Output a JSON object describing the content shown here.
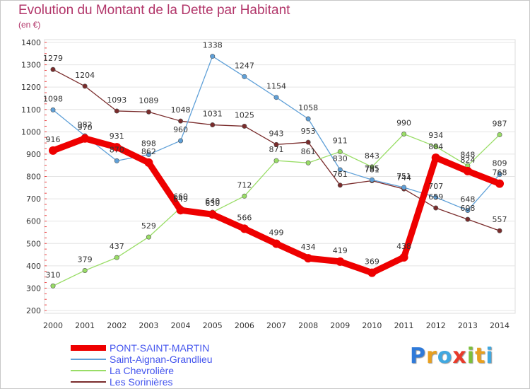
{
  "title": "Evolution du Montant de la Dette par Habitant",
  "subtitle": "(en €)",
  "logo": {
    "letters": [
      "P",
      "r",
      "o",
      "x",
      "i",
      "t",
      "i"
    ],
    "colors": [
      "#2f7ad9",
      "#e8a020",
      "#41a8e0",
      "#e83a2a",
      "#7cc03a",
      "#e8a020",
      "#41a8e0"
    ]
  },
  "chart_data": {
    "type": "line",
    "title": "Evolution du Montant de la Dette par Habitant",
    "ylabel": "(en €)",
    "xlabel": "",
    "x": [
      "2000",
      "2001",
      "2002",
      "2003",
      "2004",
      "2005",
      "2006",
      "2007",
      "2008",
      "2009",
      "2010",
      "2011",
      "2012",
      "2013",
      "2014"
    ],
    "ylim": [
      200,
      1400
    ],
    "yticks": [
      "1400",
      "1300",
      "1200",
      "1100",
      "1000",
      "900",
      "800",
      "700",
      "600",
      "500",
      "400",
      "300",
      "200"
    ],
    "grid": "horizontal",
    "legend": "bottom-left",
    "series": [
      {
        "name": "PONT-SAINT-MARTIN",
        "color": "#ee0000",
        "values": [
          916,
          970,
          931,
          862,
          649,
          630,
          566,
          499,
          434,
          419,
          369,
          438,
          884,
          824,
          768
        ],
        "labels": [
          "916",
          "970",
          "931",
          "862",
          "649",
          "630",
          "566",
          "499",
          "434",
          "419",
          "369",
          "438",
          "884",
          "824",
          "768"
        ]
      },
      {
        "name": "Saint-Aignan-Grandlieu",
        "color": "#5fa0d8",
        "values": [
          1098,
          982,
          870,
          898,
          960,
          1338,
          1247,
          1154,
          1058,
          830,
          785,
          751,
          707,
          648,
          809
        ],
        "labels": [
          "1098",
          "982",
          "870",
          "898",
          "960",
          "1338",
          "1247",
          "1154",
          "1058",
          "830",
          "785",
          "751",
          "707",
          "648",
          "809"
        ]
      },
      {
        "name": "La Chevrolière",
        "color": "#99dd66",
        "values": [
          310,
          379,
          437,
          529,
          660,
          640,
          712,
          871,
          861,
          911,
          843,
          990,
          934,
          848,
          987
        ],
        "labels": [
          "310",
          "379",
          "437",
          "529",
          "660",
          "640",
          "712",
          "871",
          "861",
          "911",
          "843",
          "990",
          "934",
          "848",
          "987"
        ]
      },
      {
        "name": "Les Sorinières",
        "color": "#7a2c2c",
        "values": [
          1279,
          1204,
          1093,
          1089,
          1048,
          1031,
          1025,
          943,
          953,
          761,
          781,
          744,
          659,
          608,
          557
        ],
        "labels": [
          "1279",
          "1204",
          "1093",
          "1089",
          "1048",
          "1031",
          "1025",
          "943",
          "953",
          "761",
          "781",
          "744",
          "659",
          "608",
          "557"
        ]
      }
    ]
  }
}
